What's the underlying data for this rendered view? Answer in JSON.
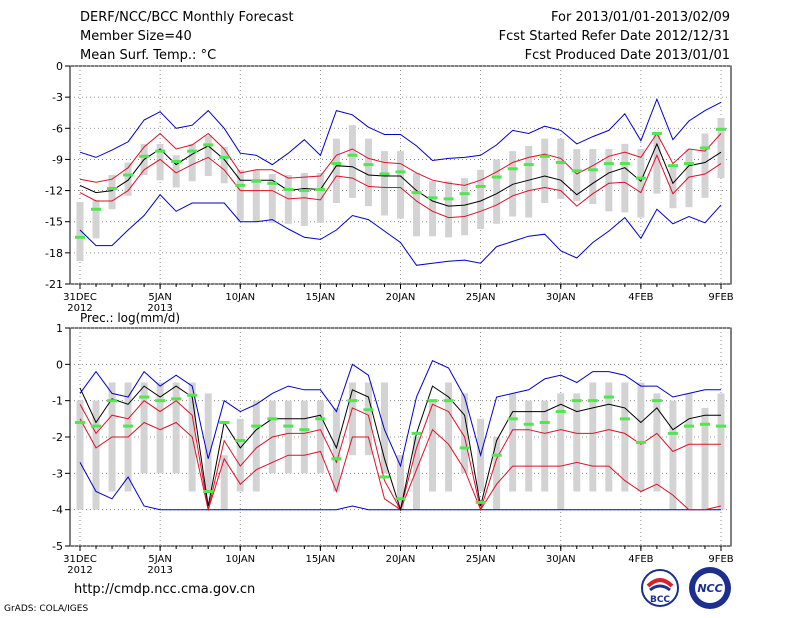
{
  "header": {
    "title": "DERF/NCC/BCC Monthly Forecast",
    "member_size": "Member Size=40",
    "variable": "Mean Surf. Temp.: °C",
    "period": "For 2013/01/01-2013/02/09",
    "started": "Fcst Started Refer Date 2012/12/31",
    "produced": "Fcst Produced Date 2013/01/01"
  },
  "footer": {
    "url": "http://cmdp.ncc.cma.gov.cn",
    "credit": "GrADS: COLA/IGES",
    "logo1": "BCC",
    "logo2": "NCC"
  },
  "colors": {
    "box": "#d3d3d3",
    "median": "#50e650",
    "mean": "#000000",
    "pct": "#e0102a",
    "range": "#0000cc"
  },
  "chart_data": [
    {
      "type": "line",
      "title": "Mean Surf. Temp.: °C",
      "ylim": [
        -21,
        0
      ],
      "yticks": [
        0,
        -3,
        -6,
        -9,
        -12,
        -15,
        -18,
        -21
      ],
      "ytick_labels": [
        "0",
        "-3",
        "-6",
        "-9",
        "-12",
        "-15",
        "-18",
        "-21"
      ],
      "x": [
        1,
        2,
        3,
        4,
        5,
        6,
        7,
        8,
        9,
        10,
        11,
        12,
        13,
        14,
        15,
        16,
        17,
        18,
        19,
        20,
        21,
        22,
        23,
        24,
        25,
        26,
        27,
        28,
        29,
        30,
        31,
        32,
        33,
        34,
        35,
        36,
        37,
        38,
        39,
        40,
        41
      ],
      "x_ticks": [
        "31DEC\n2012",
        "5JAN\n2013",
        "10JAN",
        "15JAN",
        "20JAN",
        "25JAN",
        "30JAN",
        "4FEB",
        "9FEB"
      ],
      "series": [
        {
          "name": "box-high",
          "values": [
            -13.1,
            -12.9,
            -10.5,
            -9.3,
            -7.5,
            -7.5,
            -8.6,
            -7.5,
            -6.7,
            -7.8,
            -10,
            -10,
            -10.4,
            -10.5,
            -10.3,
            -10.3,
            -7,
            -5.7,
            -7,
            -8.2,
            -8.2,
            -10.3,
            -11.1,
            -11.1,
            -10.8,
            -10,
            -9,
            -8.2,
            -7.7,
            -7,
            -7,
            -8,
            -8,
            -8,
            -7.5,
            -8,
            -6.5,
            -9.5,
            -8,
            -6.5,
            -5
          ]
        },
        {
          "name": "box-low",
          "values": [
            -18.8,
            -16.6,
            -13.8,
            -12.5,
            -10.5,
            -11,
            -11.7,
            -11.1,
            -10.6,
            -11.3,
            -14.9,
            -15,
            -15.1,
            -15.2,
            -15.4,
            -15.1,
            -13.2,
            -12.7,
            -13.5,
            -14.4,
            -14.7,
            -16.4,
            -16.4,
            -16.5,
            -16.3,
            -15.7,
            -15.2,
            -14.5,
            -14.6,
            -13.2,
            -12.8,
            -13,
            -13.3,
            -14,
            -14.1,
            -14.6,
            -12.3,
            -13.7,
            -13.6,
            -12.7,
            -10.8
          ]
        },
        {
          "name": "box-median",
          "values": [
            -16.5,
            -13.8,
            -11.8,
            -10.5,
            -8.7,
            -8.2,
            -9.2,
            -8.2,
            -7.6,
            -8.8,
            -11.5,
            -11.1,
            -11.3,
            -11.9,
            -12,
            -11.9,
            -9.4,
            -8.6,
            -9.5,
            -10.4,
            -10.2,
            -12.2,
            -12.7,
            -12.8,
            -12.3,
            -11.6,
            -10.7,
            -9.9,
            -9.5,
            -8.7,
            -9.3,
            -10.1,
            -10,
            -9.4,
            -9.4,
            -10.8,
            -6.5,
            -9.6,
            -9.4,
            -7.9,
            -6.1
          ]
        },
        {
          "name": "ens-max",
          "values": [
            -8.3,
            -8.8,
            -8.1,
            -7.3,
            -5.2,
            -4.4,
            -6,
            -5.7,
            -4.3,
            -6,
            -8.4,
            -8.6,
            -9.5,
            -8.4,
            -7.1,
            -8.6,
            -4.3,
            -4.7,
            -5.9,
            -6.6,
            -6.6,
            -7.7,
            -9.1,
            -8.9,
            -8.8,
            -8.6,
            -7.6,
            -6.2,
            -6.5,
            -5.8,
            -6.2,
            -7.5,
            -6.8,
            -6.2,
            -4.6,
            -7.2,
            -3.2,
            -7.1,
            -5.3,
            -4.3,
            -3.5
          ]
        },
        {
          "name": "pct-high",
          "values": [
            -10.9,
            -11.2,
            -10.9,
            -9.8,
            -7.8,
            -6.5,
            -8,
            -7.6,
            -6.5,
            -8,
            -10.3,
            -10,
            -10,
            -10.8,
            -10.7,
            -10.6,
            -8.6,
            -8,
            -8.9,
            -9.3,
            -9.4,
            -10.3,
            -11,
            -11.3,
            -11.5,
            -11,
            -10.2,
            -9.3,
            -8.8,
            -8.5,
            -8.9,
            -10.4,
            -9.6,
            -8.7,
            -8.3,
            -8.8,
            -6.5,
            -9.4,
            -8,
            -8.2,
            -6.5
          ]
        },
        {
          "name": "mean",
          "values": [
            -11.5,
            -12.2,
            -12,
            -11,
            -9,
            -8,
            -9.5,
            -8.5,
            -7.7,
            -9,
            -11,
            -11,
            -11,
            -12,
            -11.8,
            -11.9,
            -9.6,
            -9.7,
            -10.5,
            -10.6,
            -10.6,
            -12,
            -13,
            -13.5,
            -13.4,
            -13,
            -12.3,
            -11.4,
            -11,
            -10.6,
            -11,
            -12.4,
            -11.3,
            -10.3,
            -9.8,
            -11.1,
            -7.5,
            -11.3,
            -9.6,
            -9.3,
            -8.3
          ]
        },
        {
          "name": "pct-low",
          "values": [
            -12.2,
            -13,
            -13,
            -12,
            -10,
            -9,
            -10.3,
            -9.5,
            -8.8,
            -10,
            -12,
            -12,
            -12,
            -12.8,
            -12.7,
            -12.9,
            -10.6,
            -10.8,
            -11.6,
            -11.7,
            -11.7,
            -13,
            -14,
            -14.6,
            -14.5,
            -14,
            -13.4,
            -12.5,
            -12,
            -11.7,
            -12,
            -13.5,
            -12.3,
            -11.3,
            -11.2,
            -12.2,
            -8.6,
            -12.3,
            -10.7,
            -10.4,
            -9.4
          ]
        },
        {
          "name": "ens-min",
          "values": [
            -15.8,
            -17.3,
            -17.3,
            -15.8,
            -14.4,
            -12.4,
            -14,
            -13.2,
            -13.2,
            -13.2,
            -15,
            -15,
            -14.8,
            -15.7,
            -16.5,
            -16.7,
            -15.8,
            -14.4,
            -14.8,
            -15.9,
            -17,
            -19.2,
            -19,
            -18.8,
            -18.7,
            -19,
            -17.4,
            -16.9,
            -16.4,
            -16.2,
            -17.8,
            -18.5,
            -17,
            -15.9,
            -14.6,
            -16.6,
            -13.8,
            -15.2,
            -14.5,
            -15.1,
            -13.4
          ]
        }
      ]
    },
    {
      "type": "line",
      "title": "Prec.: log(mm/d)",
      "ylim": [
        -5,
        1
      ],
      "yticks": [
        1,
        0,
        -1,
        -2,
        -3,
        -4,
        -5
      ],
      "ytick_labels": [
        "1",
        "0",
        "-1",
        "-2",
        "-3",
        "-4",
        "-5"
      ],
      "x": [
        1,
        2,
        3,
        4,
        5,
        6,
        7,
        8,
        9,
        10,
        11,
        12,
        13,
        14,
        15,
        16,
        17,
        18,
        19,
        20,
        21,
        22,
        23,
        24,
        25,
        26,
        27,
        28,
        29,
        30,
        31,
        32,
        33,
        34,
        35,
        36,
        37,
        38,
        39,
        40,
        41
      ],
      "x_ticks": [
        "31DEC\n2012",
        "5JAN\n2013",
        "10JAN",
        "15JAN",
        "20JAN",
        "25JAN",
        "30JAN",
        "4FEB",
        "9FEB"
      ],
      "series": [
        {
          "name": "box-high",
          "values": [
            -1,
            -1,
            -0.5,
            -0.5,
            -0.5,
            -0.5,
            -0.5,
            -0.5,
            -0.8,
            -2.5,
            -1.5,
            -1,
            -1,
            -1,
            -1,
            -1,
            -1.2,
            -0.5,
            -0.5,
            -0.5,
            -2.5,
            -2,
            -1,
            -0.5,
            -0.8,
            -1.5,
            -2,
            -0.8,
            -1,
            -1,
            -0.8,
            -0.8,
            -0.5,
            -0.5,
            -0.5,
            -0.5,
            -0.8,
            -1,
            -0.8,
            -1.2,
            -0.8
          ]
        },
        {
          "name": "box-low",
          "values": [
            -4,
            -4,
            -3.5,
            -3.5,
            -3,
            -3,
            -3,
            -3.5,
            -3.5,
            -4,
            -3.5,
            -3.5,
            -3,
            -3,
            -3,
            -3,
            -3.5,
            -2.5,
            -2.5,
            -3,
            -4,
            -4,
            -3.5,
            -3.5,
            -3,
            -3.5,
            -4,
            -3.5,
            -3.5,
            -3.5,
            -4,
            -3.5,
            -3.5,
            -3.5,
            -3.5,
            -3.5,
            -3.5,
            -4,
            -4,
            -4,
            -4
          ]
        },
        {
          "name": "box-median",
          "values": [
            -1.6,
            -1.7,
            -1,
            -1.7,
            -0.9,
            -1,
            -0.95,
            -0.85,
            -3.5,
            -1.6,
            -2.1,
            -1.7,
            -1.5,
            -1.7,
            -1.8,
            -1.5,
            -2.6,
            -1,
            -1.25,
            -3.1,
            -3.7,
            -1.9,
            -1,
            -1,
            -2.3,
            -3.8,
            -2.5,
            -1.5,
            -1.65,
            -1.6,
            -1.3,
            -1,
            -1,
            -0.9,
            -1.5,
            -2.15,
            -1,
            -1.9,
            -1.7,
            -1.65,
            -1.7
          ]
        },
        {
          "name": "ens-max",
          "values": [
            -0.8,
            -0.2,
            -0.8,
            -0.9,
            -0.2,
            -0.6,
            -0.3,
            -0.6,
            -2.6,
            -1,
            -1.3,
            -1.1,
            -0.8,
            -0.6,
            -0.7,
            -0.7,
            -1.3,
            0,
            -0.3,
            -1.8,
            -2.8,
            -0.9,
            0.1,
            -0.1,
            -0.9,
            -2.5,
            -0.9,
            -0.8,
            -0.7,
            -0.4,
            -0.3,
            -0.5,
            -0.2,
            -0.2,
            -0.3,
            -0.6,
            -0.6,
            -0.9,
            -0.8,
            -0.7,
            -0.7
          ]
        },
        {
          "name": "mean",
          "values": [
            -0.65,
            -1.6,
            -0.95,
            -1.1,
            -0.6,
            -0.9,
            -0.6,
            -0.9,
            -3.9,
            -1.6,
            -2.3,
            -1.8,
            -1.5,
            -1.5,
            -1.5,
            -1.4,
            -2.3,
            -0.7,
            -0.9,
            -2.6,
            -4,
            -1.9,
            -0.6,
            -0.9,
            -1.4,
            -3.9,
            -2.1,
            -1.3,
            -1.3,
            -1.3,
            -1.1,
            -1.3,
            -1.2,
            -1.1,
            -1.2,
            -1.6,
            -1.2,
            -1.8,
            -1.5,
            -1.4,
            -1.4
          ]
        },
        {
          "name": "pct-high",
          "values": [
            -1.1,
            -1.9,
            -1.4,
            -1.5,
            -1,
            -1.3,
            -1,
            -1.4,
            -4,
            -2.1,
            -2.8,
            -2.3,
            -2,
            -1.9,
            -1.9,
            -1.8,
            -2.7,
            -1.2,
            -1.4,
            -3.2,
            -4,
            -2.3,
            -1.1,
            -1.3,
            -2,
            -4,
            -2.6,
            -1.8,
            -1.8,
            -1.9,
            -1.8,
            -1.9,
            -1.9,
            -1.8,
            -1.9,
            -2.2,
            -1.9,
            -2.4,
            -2.2,
            -2.2,
            -2.2
          ]
        },
        {
          "name": "pct-low",
          "values": [
            -1.5,
            -2.3,
            -2,
            -2,
            -1.6,
            -1.8,
            -1.6,
            -2,
            -4,
            -2.6,
            -3.3,
            -2.9,
            -2.7,
            -2.5,
            -2.5,
            -2.4,
            -3.5,
            -2,
            -2,
            -3.7,
            -4,
            -2.9,
            -1.8,
            -2.2,
            -2.9,
            -4,
            -3.3,
            -2.8,
            -2.8,
            -2.8,
            -2.8,
            -2.7,
            -2.8,
            -2.8,
            -3.2,
            -3.5,
            -3.3,
            -3.6,
            -4,
            -4,
            -3.9
          ]
        },
        {
          "name": "ens-min",
          "values": [
            -2.7,
            -3.5,
            -3.7,
            -3.1,
            -3.9,
            -4,
            -4,
            -4,
            -4,
            -4,
            -4,
            -4,
            -4,
            -4,
            -4,
            -4,
            -4,
            -3.9,
            -4,
            -4,
            -4,
            -4,
            -4,
            -4,
            -4,
            -4,
            -4,
            -4,
            -4,
            -4,
            -4,
            -4,
            -4,
            -4,
            -4,
            -4,
            -4,
            -4,
            -4,
            -4,
            -4
          ]
        }
      ]
    }
  ]
}
